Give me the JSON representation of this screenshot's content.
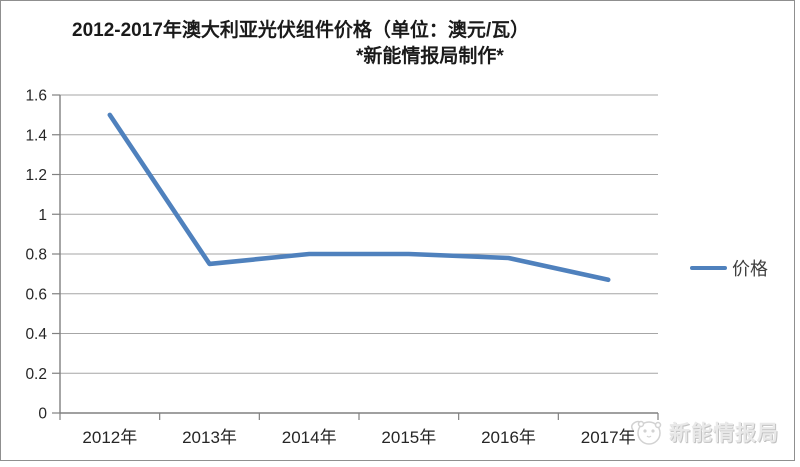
{
  "title": {
    "line1": "2012-2017年澳大利亚光伏组件价格（单位：澳元/瓦）",
    "line2": "*新能情报局制作*"
  },
  "legend": {
    "label": "价格"
  },
  "watermark": {
    "label": "新能情报局",
    "icon": "panda-logo-icon"
  },
  "colors": {
    "line": "#4F81BD",
    "grid": "#A6A6A6",
    "axis": "#808080",
    "tick_text": "#262626",
    "watermark": "#DCDCDC"
  },
  "chart_data": {
    "type": "line",
    "title": "2012-2017年澳大利亚光伏组件价格（单位：澳元/瓦）",
    "subtitle": "*新能情报局制作*",
    "categories": [
      "2012年",
      "2013年",
      "2014年",
      "2015年",
      "2016年",
      "2017年"
    ],
    "series": [
      {
        "name": "价格",
        "values": [
          1.5,
          0.75,
          0.8,
          0.8,
          0.78,
          0.67
        ]
      }
    ],
    "xlabel": "",
    "ylabel": "",
    "ylim": [
      0,
      1.6
    ],
    "ytick_step": 0.2,
    "ytick_labels": [
      "0",
      "0.2",
      "0.4",
      "0.6",
      "0.8",
      "1",
      "1.2",
      "1.4",
      "1.6"
    ],
    "grid": true,
    "legend_position": "right"
  }
}
